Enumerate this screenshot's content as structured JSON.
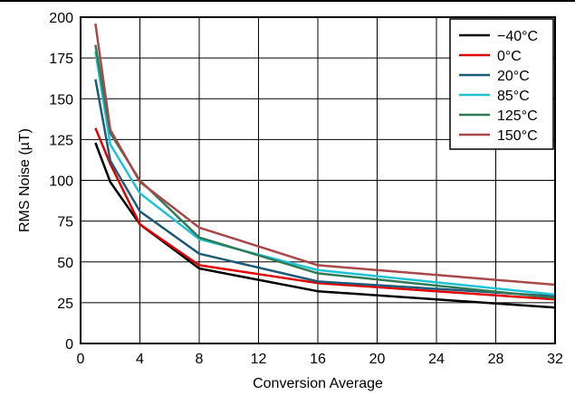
{
  "chart_data": {
    "type": "line",
    "xlabel": "Conversion Average",
    "ylabel": "RMS Noise (µT)",
    "xlim": [
      0,
      32
    ],
    "ylim": [
      0,
      200
    ],
    "xticks": [
      0,
      4,
      8,
      12,
      16,
      20,
      24,
      28,
      32
    ],
    "yticks": [
      0,
      25,
      50,
      75,
      100,
      125,
      150,
      175,
      200
    ],
    "grid": true,
    "legend_position": "top-right",
    "x": [
      1,
      2,
      4,
      8,
      16,
      32
    ],
    "series": [
      {
        "name": "−40°C",
        "color": "#000000",
        "values": [
          123,
          99,
          73,
          46,
          32,
          22
        ]
      },
      {
        "name": "0°C",
        "color": "#e00000",
        "values": [
          132,
          110,
          73,
          48,
          37,
          27
        ]
      },
      {
        "name": "20°C",
        "color": "#1d5b78",
        "values": [
          162,
          112,
          81,
          55,
          38,
          29
        ]
      },
      {
        "name": "85°C",
        "color": "#1ec4d6",
        "values": [
          179,
          122,
          92,
          64,
          45,
          30
        ]
      },
      {
        "name": "125°C",
        "color": "#2f7a55",
        "values": [
          183,
          129,
          100,
          65,
          43,
          28
        ]
      },
      {
        "name": "150°C",
        "color": "#a84848",
        "values": [
          196,
          131,
          99,
          71,
          48,
          36
        ]
      }
    ]
  }
}
